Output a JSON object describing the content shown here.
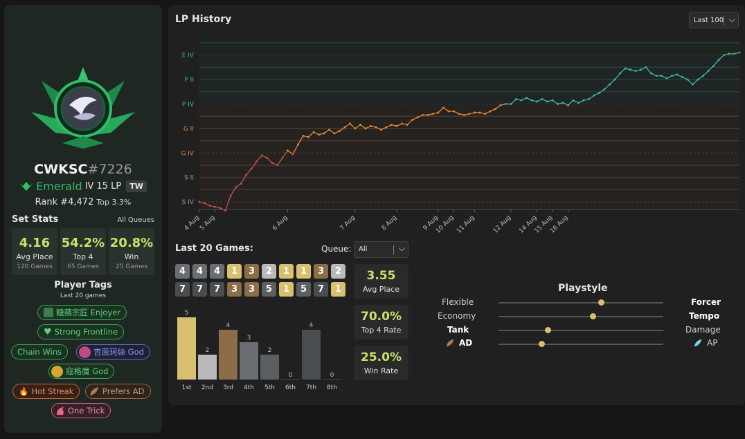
{
  "profile": {
    "name": "CWKSC",
    "tag": "#7226",
    "tier": "Emerald",
    "division": "IV",
    "lp": "15 LP",
    "region": "TW",
    "rank": "Rank #4,472",
    "top": "Top 3.3%"
  },
  "set_stats": {
    "title": "Set Stats",
    "queue_link": "All Queues",
    "boxes": [
      {
        "value": "4.16",
        "label": "Avg Place",
        "sub": "120 Games"
      },
      {
        "value": "54.2%",
        "label": "Top 4",
        "sub": "65 Games"
      },
      {
        "value": "20.8%",
        "label": "Win",
        "sub": "25 Games"
      }
    ]
  },
  "player_tags": {
    "title": "Player Tags",
    "subtitle": "Last 20 games",
    "tags": [
      {
        "label": "糖蘋宗匠 Enjoyer",
        "style": "green"
      },
      {
        "label": "Strong Frontline",
        "style": "green"
      },
      {
        "label": "Chain Wins",
        "style": "green"
      },
      {
        "label": "吉茵珂絲 God",
        "style": "blue"
      },
      {
        "label": "寇格魔 God",
        "style": "green"
      },
      {
        "label": "Hot Streak",
        "style": "orange"
      },
      {
        "label": "Prefers AD",
        "style": "brown"
      },
      {
        "label": "One Trick",
        "style": "pink"
      }
    ]
  },
  "lp_history": {
    "title": "LP History",
    "range_select": "Last 100"
  },
  "chart_data": {
    "type": "line",
    "title": "LP History",
    "y_tick_labels": [
      "E IV",
      "P II",
      "P IV",
      "G II",
      "G IV",
      "S II",
      "S IV"
    ],
    "x_tick_labels": [
      "4 Aug",
      "5 Aug",
      "6 Aug",
      "7 Aug",
      "8 Aug",
      "9 Aug",
      "10 Aug",
      "11 Aug",
      "12 Aug",
      "14 Aug",
      "15 Aug",
      "16 Aug"
    ],
    "y_scale": "rank steps: 0 = S IV, 2 = S II, 4 = G IV, 6 = G II, 8 = P IV, 10 = P II, 12 = E IV",
    "ylim": [
      -0.5,
      13.5
    ],
    "series": [
      {
        "values": [
          0,
          -0.1,
          -0.3,
          -0.4,
          -0.5,
          -0.7,
          0.5,
          1.2,
          1.5,
          2.2,
          2.7,
          3.3,
          3.8,
          3.6,
          3.2,
          3.0,
          3.6,
          4.2,
          3.9,
          4.7,
          5.4,
          5.3,
          5.7,
          5.5,
          5.6,
          5.9,
          5.6,
          5.8,
          6.1,
          6.4,
          6.0,
          6.3,
          6.0,
          6.2,
          6.1,
          5.9,
          6.1,
          6.3,
          6.2,
          6.4,
          6.3,
          6.7,
          6.9,
          7.1,
          7.1,
          7.2,
          7.3,
          7.7,
          7.4,
          7.4,
          7.2,
          7.1,
          7.2,
          7.3,
          7.3,
          7.2,
          7.4,
          7.6,
          7.9,
          8.0,
          8.0,
          8.4,
          8.3,
          8.5,
          8.3,
          8.2,
          8.4,
          8.2,
          8.3,
          8.0,
          8.1,
          7.9,
          8.3,
          8.1,
          8.3,
          8.4,
          8.7,
          8.9,
          9.2,
          9.6,
          10.0,
          10.5,
          10.9,
          10.8,
          10.7,
          10.8,
          11.0,
          10.5,
          10.3,
          10.3,
          10.1,
          10.3,
          10.4,
          10.2,
          10.0,
          9.6,
          10.0,
          10.3,
          10.7,
          11.1,
          11.6,
          12.0,
          12.1,
          12.1,
          12.2
        ]
      }
    ],
    "colors": {
      "silver": "#c0564e",
      "gold": "#e08a3c",
      "platinum": "#3fb8a8",
      "emerald": "#3fb86a"
    }
  },
  "last20": {
    "title": "Last 20 Games:",
    "queue_label": "Queue:",
    "queue_value": "All",
    "placements": [
      4,
      4,
      4,
      1,
      3,
      2,
      1,
      1,
      3,
      2,
      7,
      7,
      7,
      3,
      3,
      5,
      1,
      5,
      7,
      1
    ],
    "stats": [
      {
        "value": "3.55",
        "label": "Avg Place"
      },
      {
        "value": "70.0%",
        "label": "Top 4 Rate"
      },
      {
        "value": "25.0%",
        "label": "Win Rate"
      }
    ],
    "distribution": {
      "categories": [
        "1st",
        "2nd",
        "3rd",
        "4th",
        "5th",
        "6th",
        "7th",
        "8th"
      ],
      "values": [
        5,
        2,
        4,
        3,
        2,
        0,
        4,
        0
      ],
      "colors": [
        "#d8c070",
        "#b9b9b9",
        "#8d6d48",
        "#6a6e72",
        "#5c5f62",
        "#5c5f62",
        "#4a4d50",
        "#4a4d50"
      ]
    }
  },
  "playstyle": {
    "title": "Playstyle",
    "rows": [
      {
        "left": "Flexible",
        "right": "Forcer",
        "value": 0.62,
        "bold": "right"
      },
      {
        "left": "Economy",
        "right": "Tempo",
        "value": 0.57,
        "bold": "right"
      },
      {
        "left": "Tank",
        "right": "Damage",
        "value": 0.3,
        "bold": "left"
      },
      {
        "left": "AD",
        "right": "AP",
        "value": 0.26,
        "bold": "left"
      }
    ]
  }
}
